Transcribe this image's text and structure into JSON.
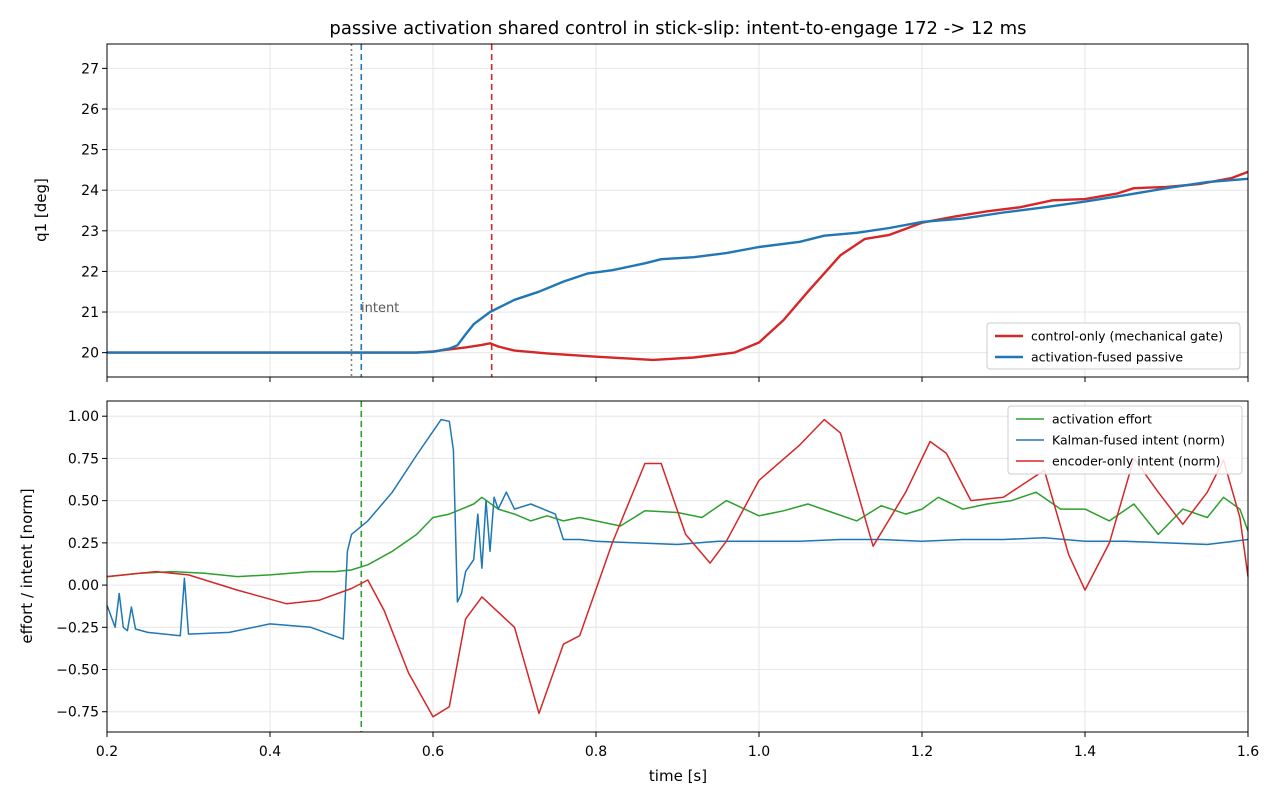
{
  "title": "passive activation shared control in stick-slip: intent-to-engage 172 -> 12 ms",
  "colors": {
    "red": "#d62728",
    "blue": "#1f77b4",
    "green": "#2ca02c",
    "grid": "#e6e6e6",
    "gray": "#7f7f7f"
  },
  "chart_data": [
    {
      "type": "line",
      "ylabel": "q1 [deg]",
      "xlabel": "",
      "xlim": [
        0.2,
        1.6
      ],
      "ylim": [
        19.4,
        27.6
      ],
      "x_ticks": [
        0.2,
        0.4,
        0.6,
        0.8,
        1.0,
        1.2,
        1.4,
        1.6
      ],
      "y_ticks": [
        20,
        21,
        22,
        23,
        24,
        25,
        26,
        27
      ],
      "y_tick_labels": [
        "20",
        "21",
        "22",
        "23",
        "24",
        "25",
        "26",
        "27"
      ],
      "grid": true,
      "legend_position": "lower-right",
      "annotation": "intent",
      "vlines": [
        {
          "x": 0.5,
          "style": "dotted",
          "color": "gray"
        },
        {
          "x": 0.512,
          "style": "dashed",
          "color": "blue"
        },
        {
          "x": 0.672,
          "style": "dashed",
          "color": "red"
        }
      ],
      "series": [
        {
          "name": "control-only (mechanical gate)",
          "color": "red",
          "x": [
            0.2,
            0.55,
            0.58,
            0.6,
            0.62,
            0.64,
            0.66,
            0.67,
            0.68,
            0.7,
            0.74,
            0.8,
            0.87,
            0.92,
            0.97,
            1.0,
            1.03,
            1.06,
            1.1,
            1.13,
            1.16,
            1.2,
            1.24,
            1.28,
            1.32,
            1.36,
            1.4,
            1.44,
            1.46,
            1.5,
            1.54,
            1.58,
            1.6
          ],
          "y": [
            20.0,
            20.0,
            20.0,
            20.03,
            20.08,
            20.13,
            20.19,
            20.23,
            20.15,
            20.05,
            19.98,
            19.9,
            19.82,
            19.88,
            20.0,
            20.25,
            20.8,
            21.5,
            22.4,
            22.8,
            22.9,
            23.2,
            23.35,
            23.48,
            23.58,
            23.75,
            23.78,
            23.92,
            24.05,
            24.08,
            24.15,
            24.3,
            24.45
          ]
        },
        {
          "name": "activation-fused passive",
          "color": "blue",
          "x": [
            0.2,
            0.58,
            0.6,
            0.62,
            0.63,
            0.64,
            0.65,
            0.67,
            0.7,
            0.73,
            0.76,
            0.79,
            0.82,
            0.86,
            0.88,
            0.92,
            0.96,
            1.0,
            1.05,
            1.08,
            1.12,
            1.16,
            1.2,
            1.25,
            1.3,
            1.35,
            1.4,
            1.45,
            1.5,
            1.55,
            1.6
          ],
          "y": [
            20.0,
            20.0,
            20.02,
            20.1,
            20.18,
            20.45,
            20.7,
            21.0,
            21.3,
            21.5,
            21.75,
            21.95,
            22.03,
            22.2,
            22.3,
            22.35,
            22.45,
            22.6,
            22.73,
            22.88,
            22.95,
            23.07,
            23.22,
            23.3,
            23.45,
            23.58,
            23.72,
            23.88,
            24.05,
            24.2,
            24.28
          ]
        }
      ]
    },
    {
      "type": "line",
      "ylabel": "effort / intent [norm]",
      "xlabel": "time [s]",
      "xlim": [
        0.2,
        1.6
      ],
      "ylim": [
        -0.87,
        1.09
      ],
      "x_ticks": [
        0.2,
        0.4,
        0.6,
        0.8,
        1.0,
        1.2,
        1.4,
        1.6
      ],
      "x_tick_labels": [
        "0.2",
        "0.4",
        "0.6",
        "0.8",
        "1.0",
        "1.2",
        "1.4",
        "1.6"
      ],
      "y_ticks": [
        -0.75,
        -0.5,
        -0.25,
        0.0,
        0.25,
        0.5,
        0.75,
        1.0
      ],
      "y_tick_labels": [
        "−0.75",
        "−0.50",
        "−0.25",
        "0.00",
        "0.25",
        "0.50",
        "0.75",
        "1.00"
      ],
      "grid": true,
      "legend_position": "top-right",
      "vlines": [
        {
          "x": 0.512,
          "style": "dashed",
          "color": "green"
        }
      ],
      "series": [
        {
          "name": "activation effort",
          "color": "green",
          "x": [
            0.2,
            0.24,
            0.28,
            0.32,
            0.36,
            0.4,
            0.45,
            0.48,
            0.5,
            0.52,
            0.55,
            0.58,
            0.6,
            0.62,
            0.65,
            0.66,
            0.68,
            0.7,
            0.72,
            0.74,
            0.76,
            0.78,
            0.8,
            0.83,
            0.86,
            0.9,
            0.93,
            0.96,
            1.0,
            1.03,
            1.06,
            1.09,
            1.12,
            1.15,
            1.18,
            1.2,
            1.22,
            1.25,
            1.28,
            1.31,
            1.34,
            1.37,
            1.4,
            1.43,
            1.46,
            1.49,
            1.52,
            1.55,
            1.57,
            1.59,
            1.6
          ],
          "y": [
            0.05,
            0.07,
            0.08,
            0.07,
            0.05,
            0.06,
            0.08,
            0.08,
            0.09,
            0.12,
            0.2,
            0.3,
            0.4,
            0.42,
            0.48,
            0.52,
            0.45,
            0.42,
            0.38,
            0.41,
            0.38,
            0.4,
            0.38,
            0.35,
            0.44,
            0.43,
            0.4,
            0.5,
            0.41,
            0.44,
            0.48,
            0.43,
            0.38,
            0.47,
            0.42,
            0.45,
            0.52,
            0.45,
            0.48,
            0.5,
            0.55,
            0.45,
            0.45,
            0.38,
            0.48,
            0.3,
            0.45,
            0.4,
            0.52,
            0.45,
            0.32
          ]
        },
        {
          "name": "Kalman-fused intent (norm)",
          "color": "blue",
          "x": [
            0.2,
            0.21,
            0.215,
            0.22,
            0.225,
            0.23,
            0.235,
            0.25,
            0.29,
            0.295,
            0.3,
            0.35,
            0.4,
            0.45,
            0.49,
            0.495,
            0.5,
            0.52,
            0.55,
            0.58,
            0.61,
            0.62,
            0.625,
            0.63,
            0.635,
            0.64,
            0.65,
            0.655,
            0.66,
            0.665,
            0.67,
            0.675,
            0.68,
            0.69,
            0.7,
            0.72,
            0.75,
            0.76,
            0.78,
            0.8,
            0.85,
            0.9,
            0.95,
            1.0,
            1.05,
            1.1,
            1.15,
            1.2,
            1.25,
            1.3,
            1.35,
            1.4,
            1.45,
            1.5,
            1.55,
            1.6
          ],
          "y": [
            -0.12,
            -0.25,
            -0.05,
            -0.25,
            -0.27,
            -0.13,
            -0.26,
            -0.28,
            -0.3,
            0.04,
            -0.29,
            -0.28,
            -0.23,
            -0.25,
            -0.32,
            0.2,
            0.3,
            0.38,
            0.55,
            0.77,
            0.98,
            0.97,
            0.8,
            -0.1,
            -0.05,
            0.08,
            0.15,
            0.42,
            0.1,
            0.5,
            0.2,
            0.52,
            0.45,
            0.55,
            0.45,
            0.48,
            0.42,
            0.27,
            0.27,
            0.26,
            0.25,
            0.24,
            0.26,
            0.26,
            0.26,
            0.27,
            0.27,
            0.26,
            0.27,
            0.27,
            0.28,
            0.26,
            0.26,
            0.25,
            0.24,
            0.27
          ]
        },
        {
          "name": "encoder-only intent (norm)",
          "color": "red",
          "x": [
            0.2,
            0.26,
            0.3,
            0.36,
            0.42,
            0.46,
            0.5,
            0.52,
            0.54,
            0.57,
            0.6,
            0.62,
            0.64,
            0.66,
            0.7,
            0.73,
            0.76,
            0.78,
            0.82,
            0.86,
            0.88,
            0.91,
            0.94,
            0.96,
            1.0,
            1.05,
            1.08,
            1.1,
            1.14,
            1.18,
            1.21,
            1.23,
            1.26,
            1.3,
            1.35,
            1.38,
            1.4,
            1.43,
            1.46,
            1.49,
            1.52,
            1.55,
            1.57,
            1.59,
            1.6
          ],
          "y": [
            0.05,
            0.08,
            0.06,
            -0.03,
            -0.11,
            -0.09,
            -0.02,
            0.03,
            -0.15,
            -0.52,
            -0.78,
            -0.72,
            -0.2,
            -0.07,
            -0.25,
            -0.76,
            -0.35,
            -0.3,
            0.25,
            0.72,
            0.72,
            0.3,
            0.13,
            0.26,
            0.62,
            0.83,
            0.98,
            0.9,
            0.23,
            0.55,
            0.85,
            0.78,
            0.5,
            0.52,
            0.68,
            0.18,
            -0.03,
            0.25,
            0.75,
            0.55,
            0.36,
            0.55,
            0.74,
            0.4,
            0.05
          ]
        }
      ]
    }
  ]
}
